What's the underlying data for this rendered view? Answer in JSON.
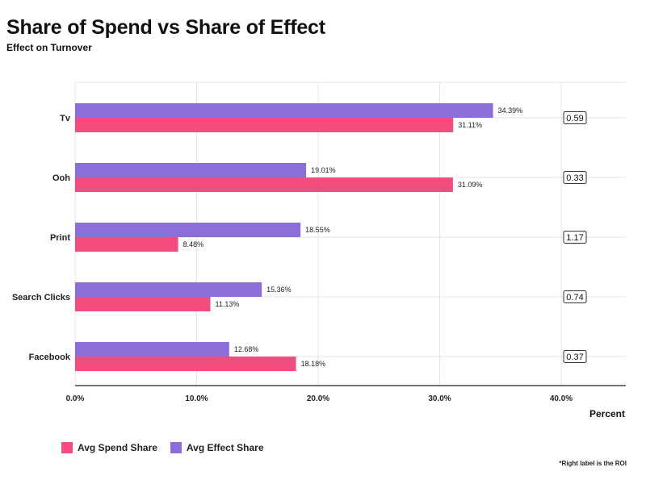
{
  "chart_data": {
    "type": "bar",
    "orientation": "horizontal",
    "title": "Share of Spend vs Share of Effect",
    "subtitle": "Effect on Turnover",
    "xlabel": "Percent",
    "categories": [
      "Tv",
      "Ooh",
      "Print",
      "Search Clicks",
      "Facebook"
    ],
    "series": [
      {
        "name": "Avg Effect Share",
        "color": "#8a6fd9",
        "values": [
          34.39,
          19.01,
          18.55,
          15.36,
          12.68
        ],
        "labels": [
          "34.39%",
          "19.01%",
          "18.55%",
          "15.36%",
          "12.68%"
        ]
      },
      {
        "name": "Avg Spend Share",
        "color": "#f24d7e",
        "values": [
          31.11,
          31.09,
          8.48,
          11.13,
          18.18
        ],
        "labels": [
          "31.11%",
          "31.09%",
          "8.48%",
          "11.13%",
          "18.18%"
        ]
      }
    ],
    "roi": [
      "0.59",
      "0.33",
      "1.17",
      "0.74",
      "0.37"
    ],
    "xticks": [
      0,
      10,
      20,
      30,
      40
    ],
    "xtick_labels": [
      "0.0%",
      "10.0%",
      "20.0%",
      "30.0%",
      "40.0%"
    ],
    "xlim": [
      0,
      45.3
    ],
    "grid": true,
    "legend": {
      "position": "bottom-left",
      "items": [
        {
          "label": "Avg Spend Share",
          "color": "#f24d7e"
        },
        {
          "label": "Avg Effect Share",
          "color": "#8a6fd9"
        }
      ]
    },
    "footnote": "*Right label is the ROI"
  }
}
